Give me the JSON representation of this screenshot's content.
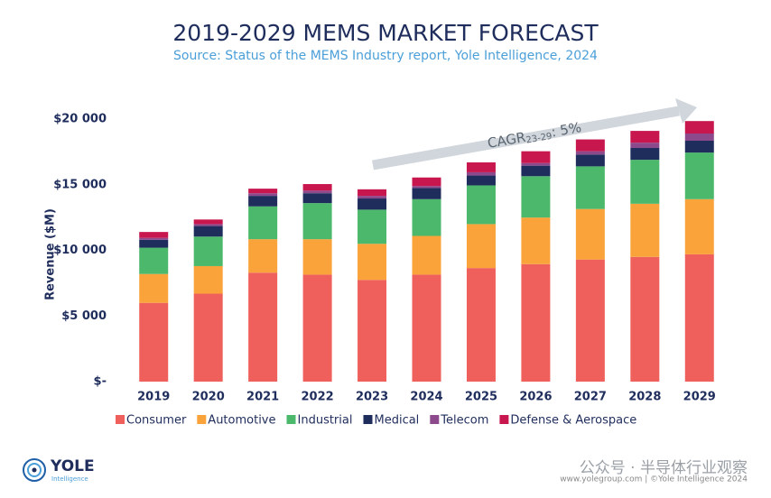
{
  "chart_data": {
    "type": "stacked-bar",
    "title": "2019-2029 MEMS MARKET FORECAST",
    "subtitle": "Source: Status of the MEMS Industry report, Yole Intelligence, 2024",
    "y_label": "Revenue ($M)",
    "categories": [
      "2019",
      "2020",
      "2021",
      "2022",
      "2023",
      "2024",
      "2025",
      "2026",
      "2027",
      "2028",
      "2029"
    ],
    "series": [
      {
        "name": "Consumer",
        "color": "#ef5f5b",
        "values": [
          6000,
          6700,
          8300,
          8150,
          7750,
          8150,
          8650,
          8950,
          9300,
          9500,
          9700
        ]
      },
      {
        "name": "Automotive",
        "color": "#f9a33a",
        "values": [
          2200,
          2100,
          2550,
          2700,
          2750,
          2950,
          3350,
          3550,
          3850,
          4050,
          4200
        ]
      },
      {
        "name": "Industrial",
        "color": "#4cb86b",
        "values": [
          2000,
          2250,
          2500,
          2750,
          2600,
          2800,
          2950,
          3150,
          3250,
          3350,
          3550
        ]
      },
      {
        "name": "Medical",
        "color": "#1f2d5c",
        "values": [
          600,
          800,
          800,
          750,
          850,
          850,
          750,
          800,
          900,
          900,
          900
        ]
      },
      {
        "name": "Telecom",
        "color": "#8c4a8c",
        "values": [
          150,
          150,
          200,
          200,
          200,
          150,
          250,
          200,
          250,
          400,
          550
        ]
      },
      {
        "name": "Defense & Aerospace",
        "color": "#c8174f",
        "values": [
          450,
          350,
          350,
          500,
          500,
          650,
          750,
          900,
          900,
          900,
          950
        ]
      }
    ],
    "ylim": [
      0,
      20000
    ],
    "yticks": [
      {
        "value": 0,
        "label": "$-"
      },
      {
        "value": 5000,
        "label": "$5 000"
      },
      {
        "value": 10000,
        "label": "$10 000"
      },
      {
        "value": 15000,
        "label": "$15 000"
      },
      {
        "value": 20000,
        "label": "$20 000"
      }
    ],
    "grid": false,
    "annotation": {
      "text": "CAGR",
      "subscript": "23-29",
      "suffix": ": 5%"
    }
  },
  "logo": {
    "name": "YOLE",
    "tagline": "Intelligence"
  },
  "footer": "www.yolegroup.com | ©Yole Intelligence 2024",
  "watermark": "公众号 · 半导体行业观察"
}
